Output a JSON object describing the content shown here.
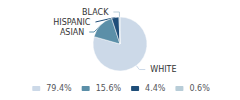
{
  "chart_data": {
    "type": "pie",
    "categories": [
      "WHITE",
      "ASIAN",
      "HISPANIC",
      "BLACK"
    ],
    "values": [
      79.4,
      15.6,
      4.4,
      0.6
    ],
    "value_labels": [
      "79.4%",
      "15.6%",
      "4.4%",
      "0.6%"
    ],
    "colors": [
      "#ccd9e8",
      "#5b8fa8",
      "#1f4e79",
      "#b8cdd8"
    ],
    "legend": "bottom"
  }
}
